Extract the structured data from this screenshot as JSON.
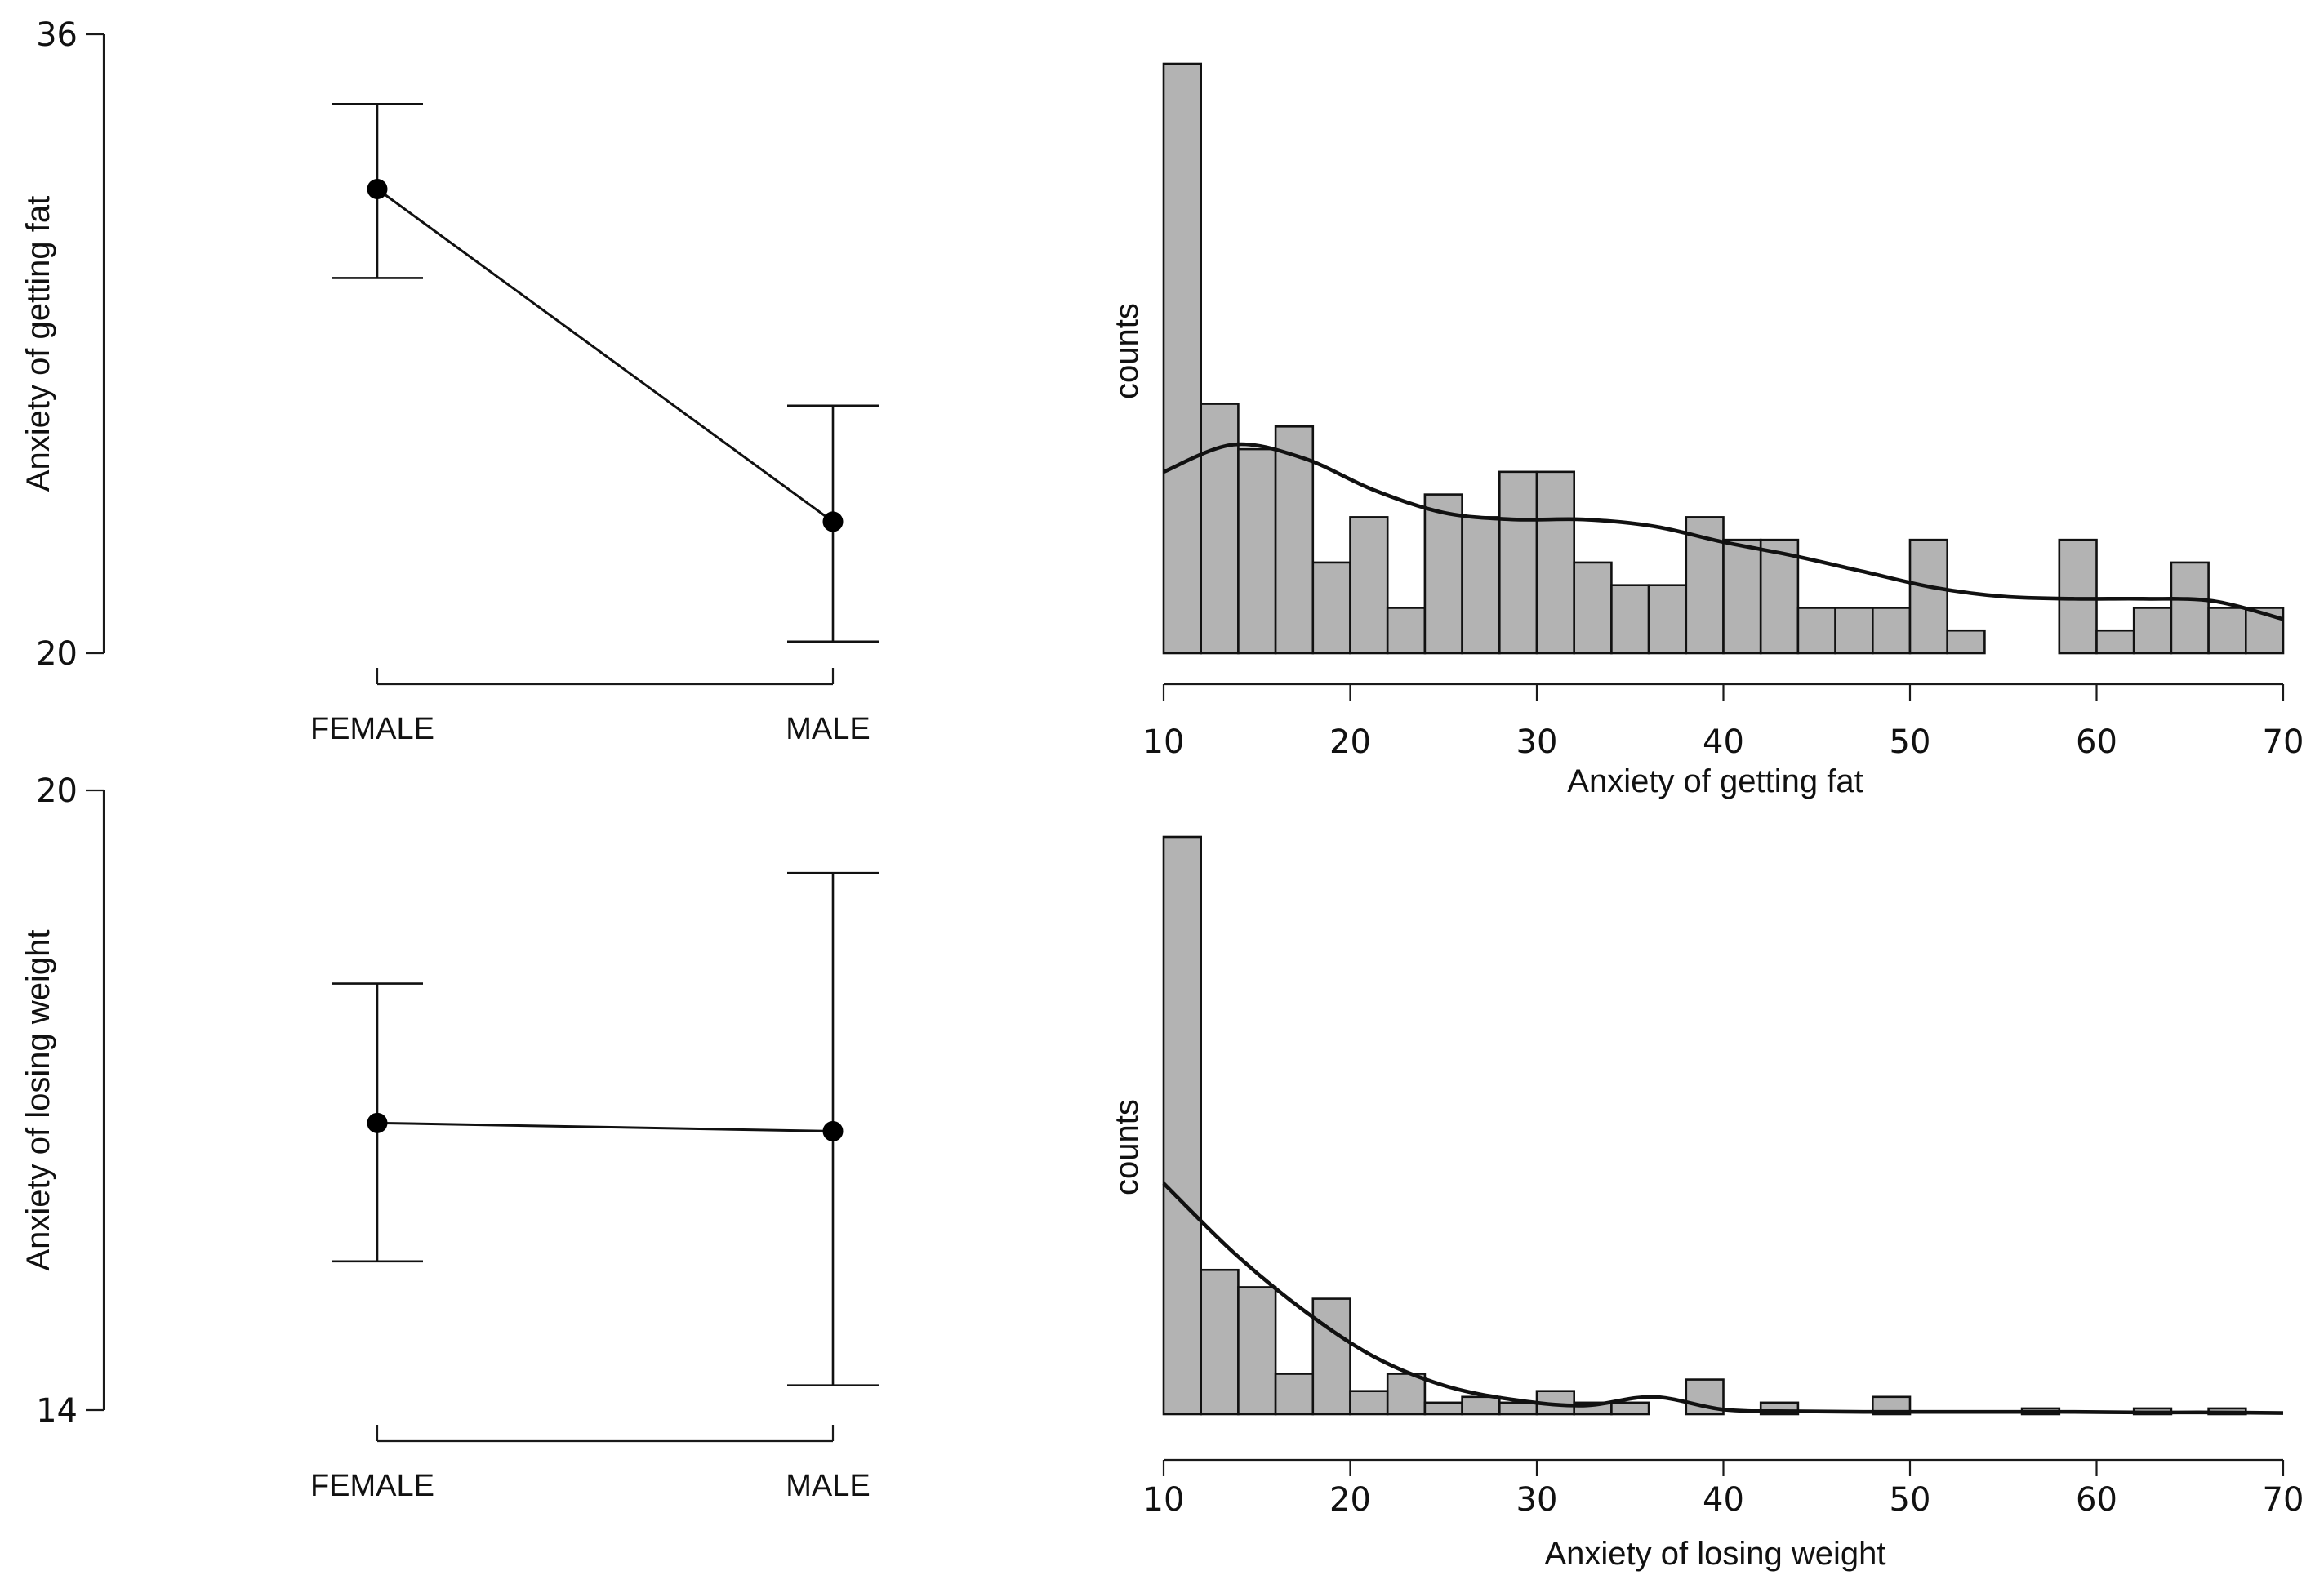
{
  "chart_data": [
    {
      "type": "line",
      "panel": "top-left",
      "ylabel": "Anxiety of getting fat",
      "xlabel": "",
      "ylim": [
        20,
        36
      ],
      "yticks": [
        "36",
        "20"
      ],
      "categories": [
        "FEMALE",
        "MALE"
      ],
      "means": [
        32.0,
        23.4
      ],
      "ci_low": [
        29.7,
        20.3
      ],
      "ci_high": [
        34.2,
        26.4
      ]
    },
    {
      "type": "bar",
      "panel": "top-right",
      "title": "",
      "xlabel": "Anxiety of getting fat",
      "ylabel": "counts",
      "xlim": [
        10,
        70
      ],
      "xticks": [
        "10",
        "20",
        "30",
        "40",
        "50",
        "60",
        "70"
      ],
      "bin_width": 2,
      "values": [
        26,
        11,
        9,
        10,
        4,
        6,
        2,
        7,
        6,
        8,
        8,
        4,
        3,
        3,
        6,
        5,
        5,
        2,
        2,
        2,
        5,
        1,
        0,
        0,
        5,
        1,
        2,
        4,
        2,
        2
      ],
      "density": [
        8.0,
        9.2,
        8.6,
        7.2,
        6.2,
        5.9,
        5.9,
        5.6,
        4.9,
        4.3,
        3.6,
        2.9,
        2.5,
        2.4,
        2.4,
        2.3,
        1.5
      ]
    },
    {
      "type": "line",
      "panel": "bottom-left",
      "ylabel": "Anxiety of losing weight",
      "xlabel": "",
      "ylim": [
        14,
        20
      ],
      "yticks": [
        "20",
        "14"
      ],
      "categories": [
        "FEMALE",
        "MALE"
      ],
      "means": [
        16.78,
        16.7
      ],
      "ci_low": [
        15.44,
        14.24
      ],
      "ci_high": [
        18.13,
        19.2
      ]
    },
    {
      "type": "bar",
      "panel": "bottom-right",
      "title": "",
      "xlabel": "Anxiety of losing weight",
      "ylabel": "counts",
      "xlim": [
        10,
        70
      ],
      "xticks": [
        "10",
        "20",
        "30",
        "40",
        "50",
        "60",
        "70"
      ],
      "bin_width": 2,
      "values": [
        100,
        25,
        22,
        7,
        20,
        4,
        7,
        2,
        3,
        2,
        4,
        2,
        2,
        0,
        6,
        0,
        2,
        0,
        0,
        3,
        0,
        0,
        0,
        1,
        0,
        0,
        1,
        0,
        1,
        0
      ],
      "density": [
        40.0,
        28.0,
        18.0,
        10.0,
        5.0,
        2.5,
        1.5,
        3.0,
        0.8,
        0.5,
        0.4,
        0.4,
        0.4,
        0.4,
        0.3,
        0.3,
        0.2
      ]
    }
  ]
}
